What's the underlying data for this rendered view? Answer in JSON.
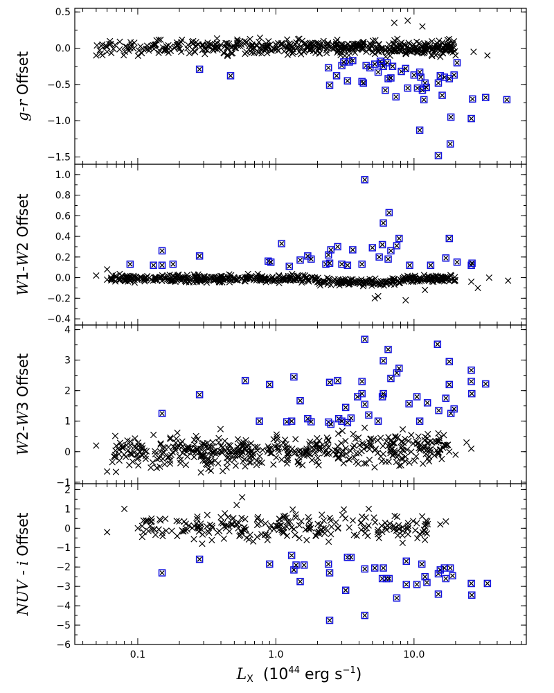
{
  "chart_data": {
    "type": "scatter",
    "x_axis": {
      "label_main": "L",
      "label_sub": "X",
      "label_unit_open": "(10",
      "label_unit_exp": "44",
      "label_unit_close": " erg s",
      "label_unit_exp2": "−1",
      "label_unit_end": ")",
      "scale": "log",
      "xlim": [
        0.035,
        65
      ],
      "ticks": [
        0.1,
        1.0,
        10.0
      ],
      "tick_labels": [
        "0.1",
        "1.0",
        "10.0"
      ]
    },
    "marker_colors": {
      "flagged": "#1010e0",
      "normal": "#000000"
    },
    "legend": "none",
    "panels": [
      {
        "ylabel_parts": [
          [
            "g",
            true
          ],
          [
            "-",
            false
          ],
          [
            "r",
            true
          ],
          [
            " Offset",
            false
          ]
        ],
        "ylim": [
          -1.6,
          0.55
        ],
        "yticks": [
          0.5,
          0.0,
          -0.5,
          -1.0,
          -1.5
        ],
        "ytick_labels": [
          "0.5",
          "0.0",
          "−0.5",
          "−1.0",
          "−1.5"
        ],
        "flagged": [
          [
            0.28,
            -0.29
          ],
          [
            0.47,
            -0.38
          ],
          [
            2.4,
            -0.27
          ],
          [
            2.45,
            -0.51
          ],
          [
            2.75,
            -0.38
          ],
          [
            3.0,
            -0.24
          ],
          [
            3.3,
            -0.45
          ],
          [
            3.1,
            -0.19
          ],
          [
            3.4,
            -0.19
          ],
          [
            3.6,
            -0.17
          ],
          [
            4.2,
            -0.46
          ],
          [
            4.3,
            -0.48
          ],
          [
            4.5,
            -0.24
          ],
          [
            4.8,
            -0.27
          ],
          [
            5.2,
            -0.22
          ],
          [
            5.5,
            -0.33
          ],
          [
            5.7,
            -0.18
          ],
          [
            5.8,
            -0.21
          ],
          [
            6.0,
            -0.25
          ],
          [
            6.2,
            -0.58
          ],
          [
            6.4,
            -0.2
          ],
          [
            6.5,
            -0.42
          ],
          [
            6.8,
            -0.41
          ],
          [
            7.0,
            -0.25
          ],
          [
            7.4,
            -0.67
          ],
          [
            8.1,
            -0.32
          ],
          [
            8.7,
            -0.28
          ],
          [
            9.0,
            -0.55
          ],
          [
            10.0,
            -0.37
          ],
          [
            10.6,
            -0.55
          ],
          [
            11.0,
            -0.33
          ],
          [
            11.2,
            -0.4
          ],
          [
            11.5,
            -0.58
          ],
          [
            11.8,
            -0.71
          ],
          [
            12.0,
            -0.48
          ],
          [
            12.3,
            -0.54
          ],
          [
            15.0,
            -0.48
          ],
          [
            15.5,
            -0.38
          ],
          [
            16.0,
            -0.65
          ],
          [
            16.6,
            -0.4
          ],
          [
            18.0,
            -0.42
          ],
          [
            18.5,
            -0.95
          ],
          [
            19.5,
            -0.37
          ],
          [
            20.5,
            -0.2
          ],
          [
            11.0,
            -1.13
          ],
          [
            18.3,
            -1.32
          ],
          [
            15.0,
            -1.48
          ],
          [
            26.0,
            -0.97
          ],
          [
            26.5,
            -0.7
          ],
          [
            33.0,
            -0.68
          ],
          [
            47.0,
            -0.71
          ]
        ],
        "normal_summary": "dense band of points around 0.0 spanning x 0.05–35"
      },
      {
        "ylabel_parts": [
          [
            "W",
            true
          ],
          [
            "1-",
            false
          ],
          [
            "W",
            true
          ],
          [
            "2 Offset",
            false
          ]
        ],
        "ylim": [
          -0.46,
          1.1
        ],
        "yticks": [
          1.0,
          0.8,
          0.6,
          0.4,
          0.2,
          0.0,
          -0.2,
          -0.4
        ],
        "ytick_labels": [
          "1.0",
          "0.8",
          "0.6",
          "0.4",
          "0.2",
          "0.0",
          "−0.2",
          "−0.4"
        ],
        "flagged": [
          [
            0.088,
            0.13
          ],
          [
            0.13,
            0.12
          ],
          [
            0.15,
            0.26
          ],
          [
            0.15,
            0.12
          ],
          [
            0.18,
            0.13
          ],
          [
            0.28,
            0.21
          ],
          [
            0.88,
            0.16
          ],
          [
            0.92,
            0.15
          ],
          [
            1.1,
            0.33
          ],
          [
            1.25,
            0.11
          ],
          [
            1.5,
            0.17
          ],
          [
            1.7,
            0.21
          ],
          [
            1.8,
            0.18
          ],
          [
            2.3,
            0.13
          ],
          [
            2.4,
            0.22
          ],
          [
            2.45,
            0.14
          ],
          [
            2.5,
            0.27
          ],
          [
            2.8,
            0.3
          ],
          [
            3.0,
            0.13
          ],
          [
            3.3,
            0.12
          ],
          [
            3.6,
            0.27
          ],
          [
            4.2,
            0.13
          ],
          [
            4.4,
            0.95
          ],
          [
            5.0,
            0.29
          ],
          [
            5.6,
            0.2
          ],
          [
            5.9,
            0.32
          ],
          [
            6.0,
            0.53
          ],
          [
            6.6,
            0.63
          ],
          [
            6.5,
            0.18
          ],
          [
            6.8,
            0.26
          ],
          [
            7.5,
            0.31
          ],
          [
            7.8,
            0.38
          ],
          [
            9.3,
            0.12
          ],
          [
            13.2,
            0.12
          ],
          [
            17.0,
            0.19
          ],
          [
            18.0,
            0.38
          ],
          [
            20.5,
            0.15
          ],
          [
            26.0,
            0.12
          ],
          [
            26.3,
            0.14
          ]
        ],
        "normal_summary": "dense band of points around 0.0 spanning x 0.05–50"
      },
      {
        "ylabel_parts": [
          [
            "W",
            true
          ],
          [
            "2-",
            false
          ],
          [
            "W",
            true
          ],
          [
            "3 Offset",
            false
          ]
        ],
        "ylim": [
          -1.05,
          4.15
        ],
        "yticks": [
          4,
          3,
          2,
          1,
          0,
          -1
        ],
        "ytick_labels": [
          "4",
          "3",
          "2",
          "1",
          "0",
          "−1"
        ],
        "flagged": [
          [
            0.15,
            1.25
          ],
          [
            0.28,
            1.87
          ],
          [
            0.6,
            2.33
          ],
          [
            0.9,
            2.2
          ],
          [
            0.76,
            1.0
          ],
          [
            1.2,
            0.98
          ],
          [
            1.3,
            1.0
          ],
          [
            1.35,
            2.45
          ],
          [
            1.5,
            1.67
          ],
          [
            1.7,
            1.08
          ],
          [
            1.8,
            0.98
          ],
          [
            2.4,
            0.97
          ],
          [
            2.5,
            0.9
          ],
          [
            2.45,
            2.27
          ],
          [
            2.8,
            2.33
          ],
          [
            2.85,
            1.08
          ],
          [
            3.0,
            1.0
          ],
          [
            3.2,
            1.45
          ],
          [
            3.3,
            0.95
          ],
          [
            3.5,
            1.1
          ],
          [
            3.9,
            1.8
          ],
          [
            4.2,
            1.9
          ],
          [
            4.2,
            2.3
          ],
          [
            4.4,
            1.55
          ],
          [
            4.4,
            3.68
          ],
          [
            4.7,
            1.2
          ],
          [
            5.5,
            1.0
          ],
          [
            5.9,
            1.8
          ],
          [
            6.0,
            1.9
          ],
          [
            6.0,
            2.98
          ],
          [
            6.5,
            3.35
          ],
          [
            6.8,
            2.4
          ],
          [
            7.5,
            2.58
          ],
          [
            7.8,
            2.73
          ],
          [
            9.2,
            1.57
          ],
          [
            10.5,
            1.8
          ],
          [
            11.0,
            1.0
          ],
          [
            12.5,
            1.6
          ],
          [
            14.8,
            3.52
          ],
          [
            15.1,
            1.35
          ],
          [
            17.0,
            1.75
          ],
          [
            18.0,
            2.2
          ],
          [
            18.0,
            2.95
          ],
          [
            18.5,
            1.25
          ],
          [
            19.5,
            1.4
          ],
          [
            26.0,
            2.67
          ],
          [
            26.0,
            2.3
          ],
          [
            26.2,
            1.9
          ],
          [
            33.0,
            2.22
          ]
        ],
        "normal_summary": "scattered cloud of points between about −0.7 and 1.2 spanning x 0.05–26"
      },
      {
        "ylabel_parts": [
          [
            "NUV",
            true
          ],
          [
            " - ",
            false
          ],
          [
            "i",
            true
          ],
          [
            " Offset",
            false
          ]
        ],
        "ylim": [
          -6.0,
          2.3
        ],
        "yticks": [
          2,
          1,
          0,
          -1,
          -2,
          -3,
          -4,
          -5,
          -6
        ],
        "ytick_labels": [
          "2",
          "1",
          "0",
          "−1",
          "−2",
          "−3",
          "−4",
          "−5",
          "−6"
        ],
        "flagged": [
          [
            0.15,
            -2.3
          ],
          [
            0.28,
            -1.6
          ],
          [
            0.9,
            -1.85
          ],
          [
            1.3,
            -1.4
          ],
          [
            1.35,
            -2.15
          ],
          [
            1.4,
            -1.9
          ],
          [
            1.5,
            -2.75
          ],
          [
            1.6,
            -1.9
          ],
          [
            2.4,
            -1.85
          ],
          [
            2.45,
            -2.3
          ],
          [
            2.45,
            -4.75
          ],
          [
            3.2,
            -3.2
          ],
          [
            3.3,
            -1.5
          ],
          [
            3.5,
            -1.5
          ],
          [
            4.4,
            -2.1
          ],
          [
            4.4,
            -4.5
          ],
          [
            5.2,
            -2.05
          ],
          [
            5.9,
            -2.6
          ],
          [
            6.0,
            -2.05
          ],
          [
            6.3,
            -2.6
          ],
          [
            6.6,
            -2.6
          ],
          [
            7.5,
            -3.6
          ],
          [
            8.8,
            -1.7
          ],
          [
            8.8,
            -2.9
          ],
          [
            10.5,
            -2.9
          ],
          [
            11.4,
            -1.85
          ],
          [
            12.0,
            -2.5
          ],
          [
            12.4,
            -2.8
          ],
          [
            15.0,
            -2.35
          ],
          [
            15.0,
            -3.4
          ],
          [
            15.5,
            -2.15
          ],
          [
            16.6,
            -2.05
          ],
          [
            17.0,
            -2.6
          ],
          [
            18.3,
            -2.05
          ],
          [
            19.0,
            -2.45
          ],
          [
            26.0,
            -2.85
          ],
          [
            26.2,
            -3.45
          ],
          [
            34.0,
            -2.85
          ]
        ],
        "normal_summary": "scattered points between about −1.5 and 1.6 spanning x 0.06–17"
      }
    ]
  }
}
